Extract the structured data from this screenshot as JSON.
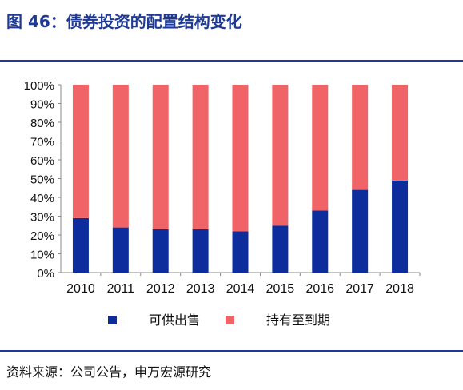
{
  "figure": {
    "title": "图 46：债券投资的配置结构变化",
    "source": "资料来源：公司公告，申万宏源研究"
  },
  "chart_data": {
    "type": "bar",
    "stacked": true,
    "categories": [
      "2010",
      "2011",
      "2012",
      "2013",
      "2014",
      "2015",
      "2016",
      "2017",
      "2018"
    ],
    "series": [
      {
        "name": "可供出售",
        "color": "#0d2d9c",
        "values": [
          29,
          24,
          23,
          23,
          22,
          25,
          33,
          44,
          49
        ]
      },
      {
        "name": "持有至到期",
        "color": "#f06467",
        "values": [
          71,
          76,
          77,
          77,
          78,
          75,
          67,
          56,
          51
        ]
      }
    ],
    "y_ticks": [
      "0%",
      "10%",
      "20%",
      "30%",
      "40%",
      "50%",
      "60%",
      "70%",
      "80%",
      "90%",
      "100%"
    ],
    "ylim": [
      0,
      100
    ],
    "legend_position": "bottom",
    "grid": false
  }
}
